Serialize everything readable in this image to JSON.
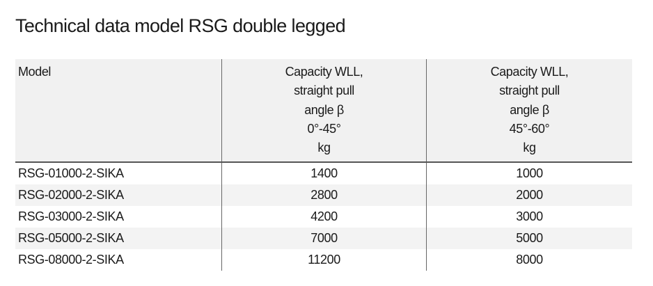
{
  "title": "Technical data model RSG double legged",
  "table": {
    "header": [
      [
        "Model"
      ],
      [
        "Capacity WLL,",
        "straight pull",
        "angle β",
        "0°-45°",
        "kg"
      ],
      [
        "Capacity WLL,",
        "straight pull",
        "angle β",
        "45°-60°",
        "kg"
      ]
    ],
    "rows": [
      [
        "RSG-01000-2-SIKA",
        1400,
        1000
      ],
      [
        "RSG-02000-2-SIKA",
        2800,
        2000
      ],
      [
        "RSG-03000-2-SIKA",
        4200,
        3000
      ],
      [
        "RSG-05000-2-SIKA",
        7000,
        5000
      ],
      [
        "RSG-08000-2-SIKA",
        11200,
        8000
      ]
    ]
  }
}
